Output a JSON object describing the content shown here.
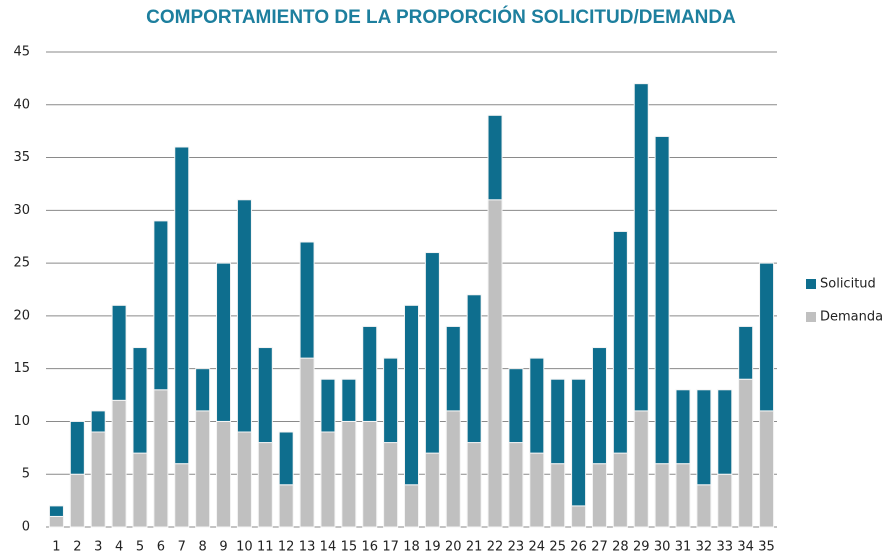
{
  "chart_data": {
    "type": "stacked_bar",
    "title": "COMPORTAMIENTO DE LA PROPORCIÓN SOLICITUD/DEMANDA",
    "categories": [
      "1",
      "2",
      "3",
      "4",
      "5",
      "6",
      "7",
      "8",
      "9",
      "10",
      "11",
      "12",
      "13",
      "14",
      "15",
      "16",
      "17",
      "18",
      "19",
      "20",
      "21",
      "22",
      "23",
      "24",
      "25",
      "26",
      "27",
      "28",
      "29",
      "30",
      "31",
      "32",
      "33",
      "34",
      "35"
    ],
    "series": [
      {
        "name": "Solicitud",
        "color": "#0e6e8e",
        "values": [
          1,
          5,
          2,
          9,
          10,
          16,
          30,
          4,
          15,
          22,
          9,
          5,
          11,
          5,
          4,
          9,
          8,
          17,
          19,
          8,
          14,
          8,
          7,
          9,
          8,
          12,
          11,
          21,
          31,
          31,
          7,
          9,
          8,
          5,
          14
        ]
      },
      {
        "name": "Demanda",
        "color": "#c0c0c0",
        "values": [
          1,
          5,
          9,
          12,
          7,
          13,
          6,
          11,
          10,
          9,
          8,
          4,
          16,
          9,
          10,
          10,
          8,
          4,
          7,
          11,
          8,
          31,
          8,
          7,
          6,
          2,
          6,
          7,
          11,
          6,
          6,
          4,
          5,
          14,
          11
        ]
      }
    ],
    "ylim": [
      0,
      45
    ],
    "yticks": [
      0,
      5,
      10,
      15,
      20,
      25,
      30,
      35,
      40,
      45
    ],
    "grid": true,
    "legend": "right"
  }
}
